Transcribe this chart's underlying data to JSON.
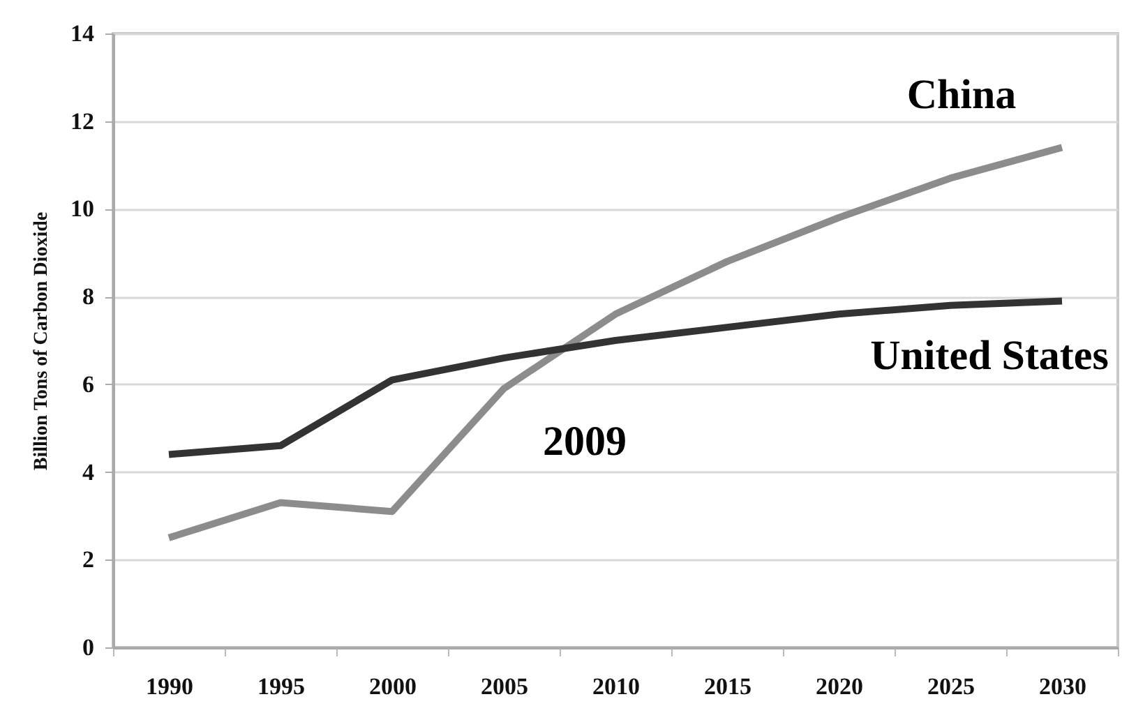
{
  "chart_data": {
    "type": "line",
    "ylabel": "Billion Tons of Carbon Dioxide",
    "categories": [
      "1990",
      "1995",
      "2000",
      "2005",
      "2010",
      "2015",
      "2020",
      "2025",
      "2030"
    ],
    "series": [
      {
        "name": "China",
        "color": "#8c8c8c",
        "values": [
          2.5,
          3.3,
          3.1,
          5.9,
          7.6,
          8.8,
          9.8,
          10.7,
          11.4
        ]
      },
      {
        "name": "United States",
        "color": "#333333",
        "values": [
          4.4,
          4.6,
          6.1,
          6.6,
          7.0,
          7.3,
          7.6,
          7.8,
          7.9
        ]
      }
    ],
    "annotations": [
      "2009"
    ],
    "ylim": [
      0,
      14
    ],
    "yticks": [
      0,
      2,
      4,
      6,
      8,
      10,
      12,
      14
    ],
    "grid": "y"
  }
}
